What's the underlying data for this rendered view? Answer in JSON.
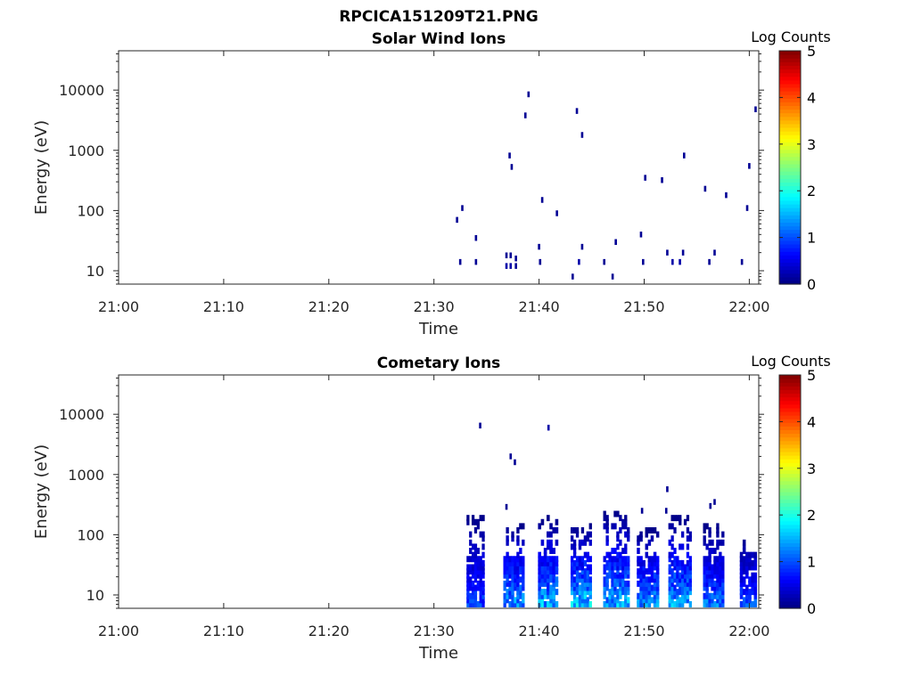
{
  "chart_data": [
    {
      "type": "heatmap",
      "figure_title": "RPCICA151209T21.PNG",
      "title": "Solar Wind Ions",
      "xlabel": "Time",
      "ylabel": "Energy (eV)",
      "x_range": [
        "21:00",
        "22:00"
      ],
      "x_ticks": [
        "21:00",
        "21:10",
        "21:20",
        "21:30",
        "21:40",
        "21:50",
        "22:00"
      ],
      "y_scale": "log",
      "y_range": [
        6,
        45000
      ],
      "y_ticks": [
        {
          "value": 10,
          "label": "10"
        },
        {
          "value": 100,
          "label": "100"
        },
        {
          "value": 1000,
          "label": "1000"
        },
        {
          "value": 10000,
          "label": "10000"
        }
      ],
      "colorbar": {
        "label": "Log Counts",
        "min": 0,
        "max": 5,
        "ticks": [
          "0",
          "1",
          "2",
          "3",
          "4",
          "5"
        ],
        "colormap": "jet"
      },
      "cells": [
        {
          "t": "21:32.2",
          "e": 70,
          "v": 0.1
        },
        {
          "t": "21:32.7",
          "e": 110,
          "v": 0.1
        },
        {
          "t": "21:34.0",
          "e": 35,
          "v": 0.1
        },
        {
          "t": "21:32.5",
          "e": 14,
          "v": 0.1
        },
        {
          "t": "21:34.0",
          "e": 14,
          "v": 0.1
        },
        {
          "t": "21:36.9",
          "e": 12,
          "v": 0.2
        },
        {
          "t": "21:36.9",
          "e": 18,
          "v": 0.1
        },
        {
          "t": "21:37.3",
          "e": 12,
          "v": 0.2
        },
        {
          "t": "21:37.3",
          "e": 18,
          "v": 0.1
        },
        {
          "t": "21:37.8",
          "e": 12,
          "v": 0.1
        },
        {
          "t": "21:37.8",
          "e": 16,
          "v": 0.1
        },
        {
          "t": "21:37.2",
          "e": 820,
          "v": 0.1
        },
        {
          "t": "21:37.4",
          "e": 530,
          "v": 0.1
        },
        {
          "t": "21:38.7",
          "e": 3800,
          "v": 0.1
        },
        {
          "t": "21:39.0",
          "e": 8500,
          "v": 0.1
        },
        {
          "t": "21:40.3",
          "e": 150,
          "v": 0.1
        },
        {
          "t": "21:41.7",
          "e": 90,
          "v": 0.1
        },
        {
          "t": "21:40.0",
          "e": 25,
          "v": 0.1
        },
        {
          "t": "21:40.1",
          "e": 14,
          "v": 0.1
        },
        {
          "t": "21:43.6",
          "e": 4500,
          "v": 0.1
        },
        {
          "t": "21:44.1",
          "e": 1800,
          "v": 0.1
        },
        {
          "t": "21:43.2",
          "e": 8,
          "v": 0.1
        },
        {
          "t": "21:43.8",
          "e": 14,
          "v": 0.2
        },
        {
          "t": "21:44.1",
          "e": 25,
          "v": 0.1
        },
        {
          "t": "21:46.2",
          "e": 14,
          "v": 0.1
        },
        {
          "t": "21:47.0",
          "e": 8,
          "v": 0.1
        },
        {
          "t": "21:47.3",
          "e": 30,
          "v": 0.1
        },
        {
          "t": "21:49.7",
          "e": 40,
          "v": 0.1
        },
        {
          "t": "21:49.9",
          "e": 14,
          "v": 0.1
        },
        {
          "t": "21:50.1",
          "e": 350,
          "v": 0.1
        },
        {
          "t": "21:51.7",
          "e": 320,
          "v": 0.1
        },
        {
          "t": "21:52.2",
          "e": 20,
          "v": 0.1
        },
        {
          "t": "21:52.7",
          "e": 14,
          "v": 0.2
        },
        {
          "t": "21:53.4",
          "e": 14,
          "v": 0.2
        },
        {
          "t": "21:53.7",
          "e": 20,
          "v": 0.1
        },
        {
          "t": "21:53.8",
          "e": 820,
          "v": 0.1
        },
        {
          "t": "21:55.8",
          "e": 230,
          "v": 0.1
        },
        {
          "t": "21:56.2",
          "e": 14,
          "v": 0.1
        },
        {
          "t": "21:56.7",
          "e": 20,
          "v": 0.1
        },
        {
          "t": "21:57.8",
          "e": 180,
          "v": 0.1
        },
        {
          "t": "21:59.3",
          "e": 14,
          "v": 0.1
        },
        {
          "t": "21:59.8",
          "e": 110,
          "v": 0.1
        },
        {
          "t": "22:00.0",
          "e": 550,
          "v": 0.1
        },
        {
          "t": "22:00.6",
          "e": 4800,
          "v": 0.1
        }
      ]
    },
    {
      "type": "heatmap",
      "title": "Cometary Ions",
      "xlabel": "Time",
      "ylabel": "Energy (eV)",
      "x_range": [
        "21:00",
        "22:00"
      ],
      "x_ticks": [
        "21:00",
        "21:10",
        "21:20",
        "21:30",
        "21:40",
        "21:50",
        "22:00"
      ],
      "y_scale": "log",
      "y_range": [
        6,
        45000
      ],
      "y_ticks": [
        {
          "value": 10,
          "label": "10"
        },
        {
          "value": 100,
          "label": "100"
        },
        {
          "value": 1000,
          "label": "1000"
        },
        {
          "value": 10000,
          "label": "10000"
        }
      ],
      "colorbar": {
        "label": "Log Counts",
        "min": 0,
        "max": 5,
        "ticks": [
          "0",
          "1",
          "2",
          "3",
          "4",
          "5"
        ],
        "colormap": "jet"
      },
      "bursts": [
        {
          "start": "21:33.1",
          "end": "21:34.8",
          "peak": 1.0,
          "top_e": 220
        },
        {
          "start": "21:36.6",
          "end": "21:38.6",
          "peak": 1.5,
          "top_e": 160
        },
        {
          "start": "21:39.9",
          "end": "21:41.8",
          "peak": 1.6,
          "top_e": 190
        },
        {
          "start": "21:43.0",
          "end": "21:45.0",
          "peak": 1.8,
          "top_e": 150
        },
        {
          "start": "21:46.1",
          "end": "21:48.6",
          "peak": 1.6,
          "top_e": 250
        },
        {
          "start": "21:49.3",
          "end": "21:51.4",
          "peak": 1.5,
          "top_e": 130
        },
        {
          "start": "21:52.3",
          "end": "21:54.5",
          "peak": 1.6,
          "top_e": 200
        },
        {
          "start": "21:55.6",
          "end": "21:57.6",
          "peak": 1.3,
          "top_e": 150
        },
        {
          "start": "21:59.1",
          "end": "22:00.7",
          "peak": 1.1,
          "top_e": 100
        }
      ],
      "cells": [
        {
          "t": "21:34.4",
          "e": 6500,
          "v": 0.1
        },
        {
          "t": "21:40.9",
          "e": 6000,
          "v": 0.2
        },
        {
          "t": "21:37.3",
          "e": 2000,
          "v": 0.1
        },
        {
          "t": "21:37.7",
          "e": 1600,
          "v": 0.1
        },
        {
          "t": "21:36.9",
          "e": 290,
          "v": 0.1
        },
        {
          "t": "21:52.2",
          "e": 570,
          "v": 0.1
        },
        {
          "t": "21:52.1",
          "e": 250,
          "v": 0.1
        },
        {
          "t": "21:56.3",
          "e": 300,
          "v": 0.1
        },
        {
          "t": "21:56.7",
          "e": 350,
          "v": 0.1
        },
        {
          "t": "21:49.8",
          "e": 250,
          "v": 0.1
        },
        {
          "t": "21:49.6",
          "e": 90,
          "v": 0.1
        }
      ]
    }
  ]
}
